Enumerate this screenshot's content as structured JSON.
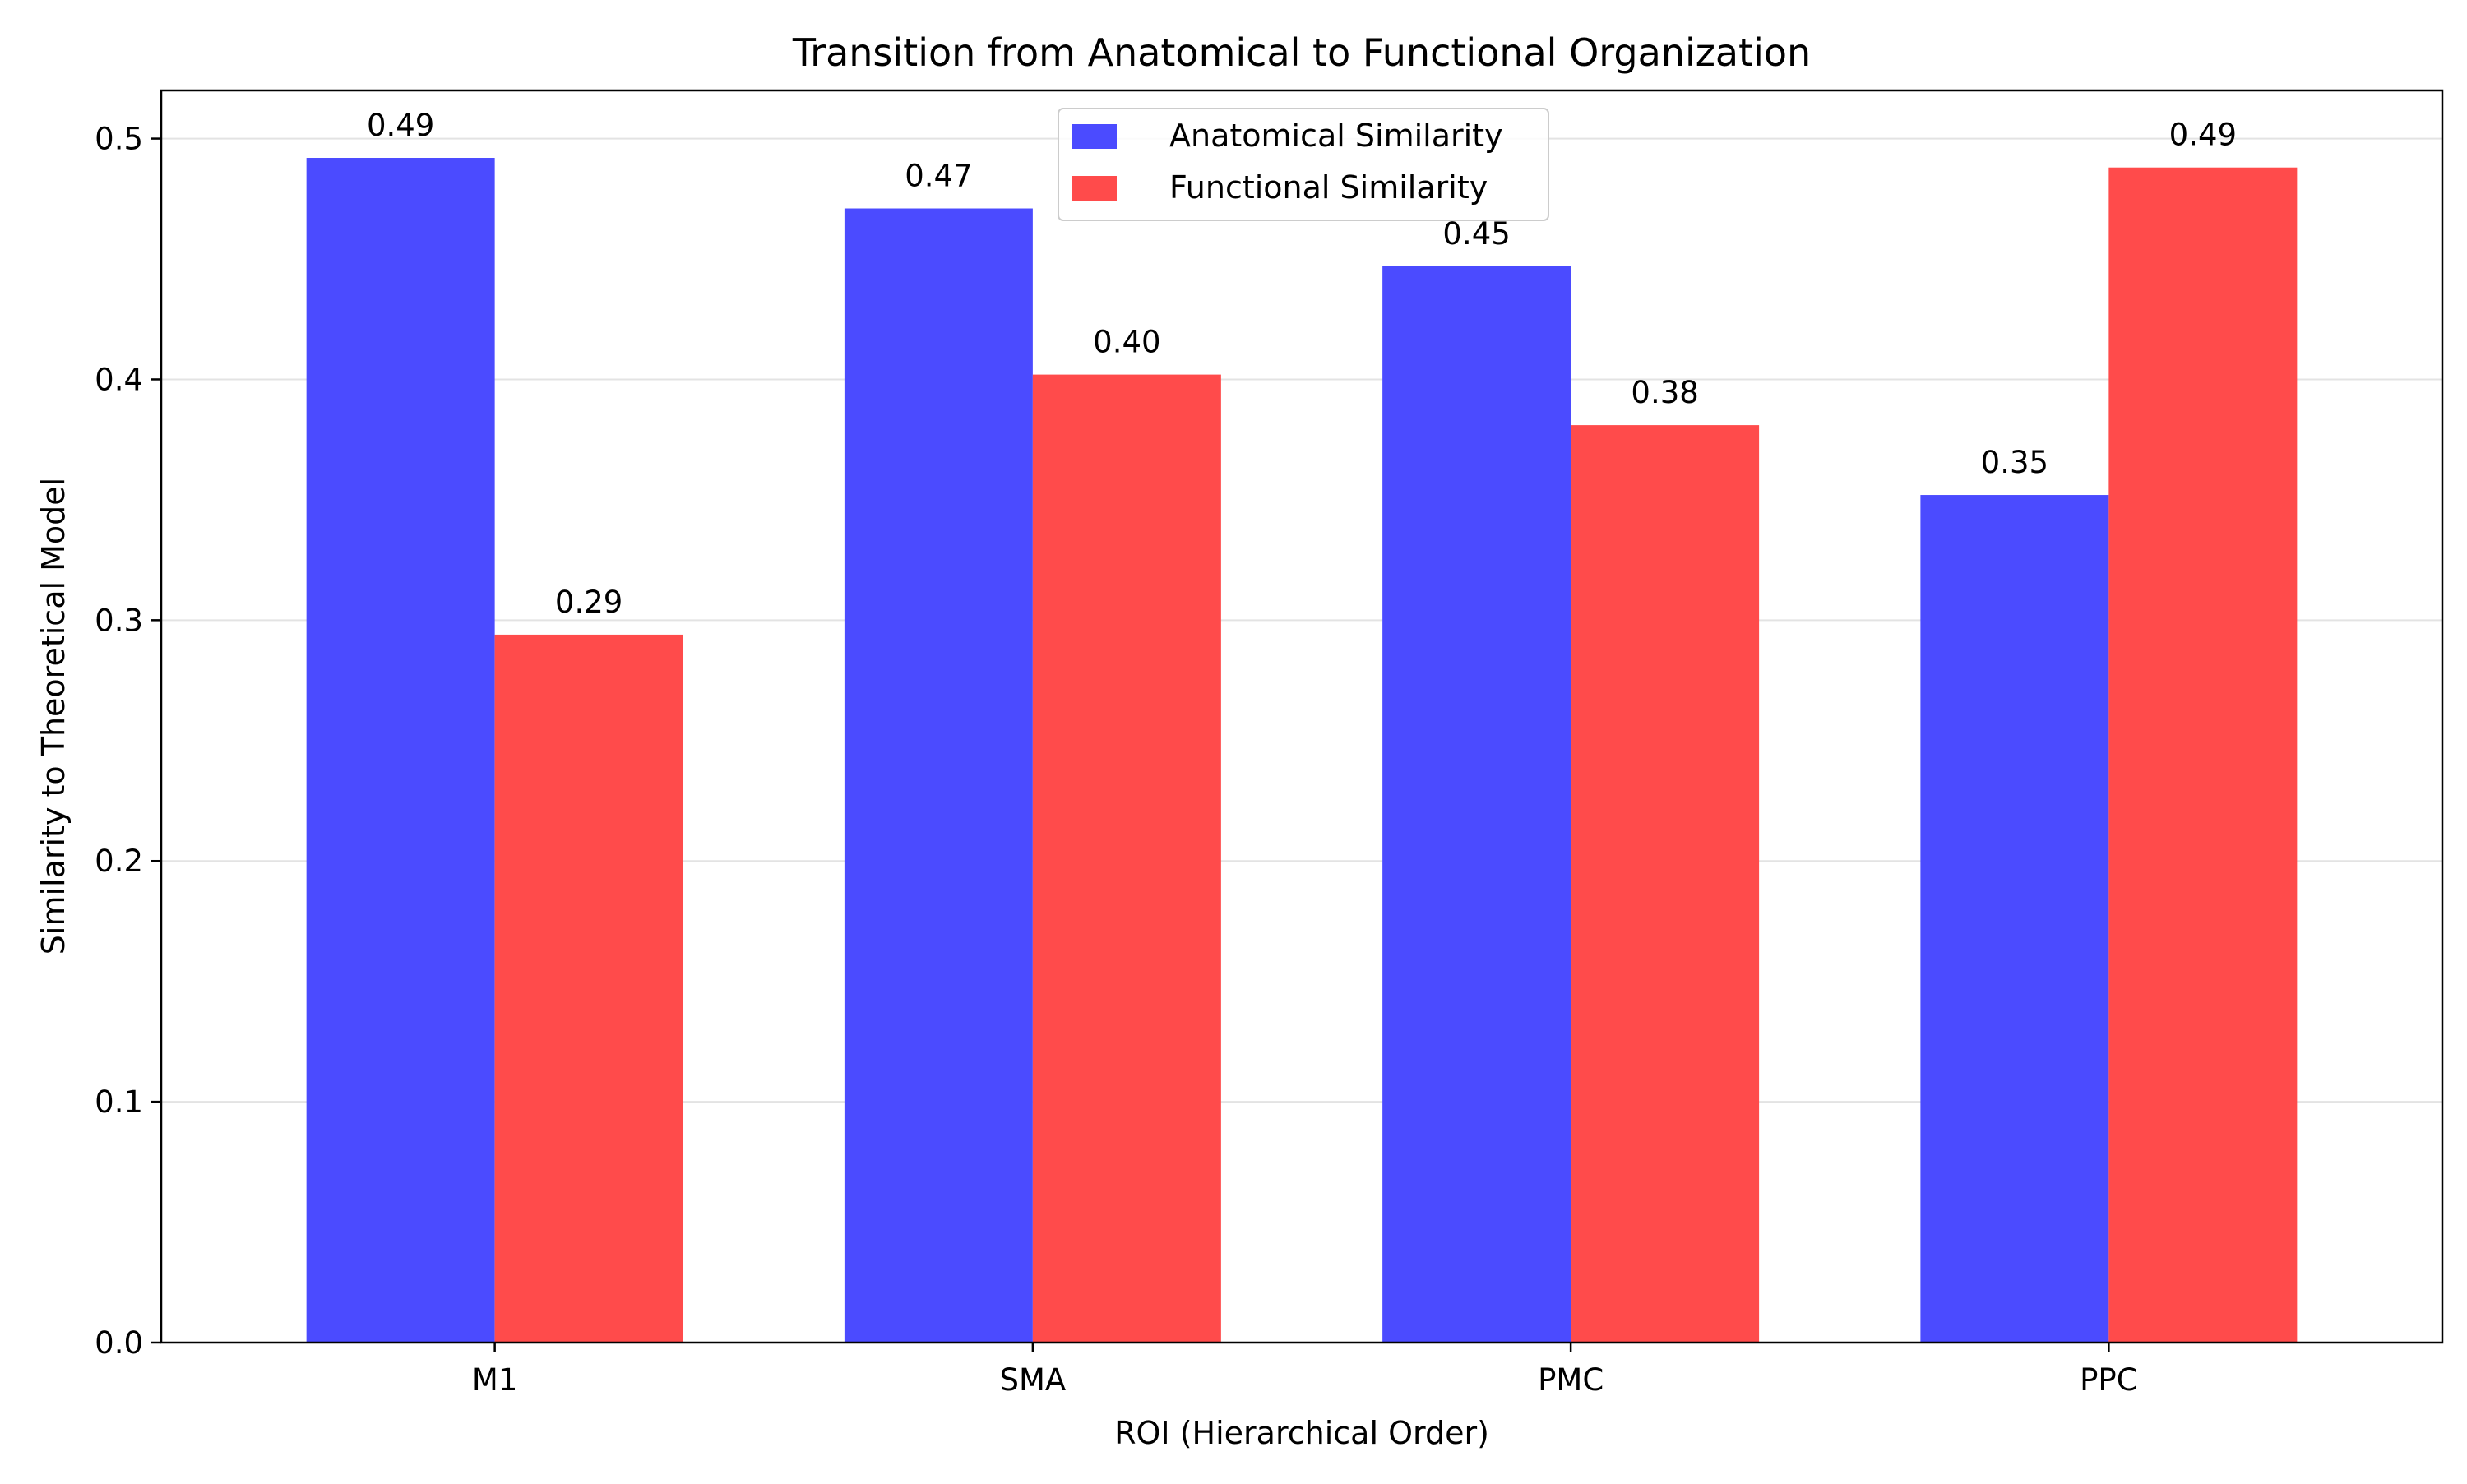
{
  "chart_data": {
    "type": "bar",
    "title": "Transition from Anatomical to Functional Organization",
    "xlabel": "ROI (Hierarchical Order)",
    "ylabel": "Similarity to Theoretical Model",
    "categories": [
      "M1",
      "SMA",
      "PMC",
      "PPC"
    ],
    "series": [
      {
        "name": "Anatomical Similarity",
        "color": "#4b4bff",
        "values": [
          0.492,
          0.471,
          0.447,
          0.352
        ],
        "labels": [
          "0.49",
          "0.47",
          "0.45",
          "0.35"
        ]
      },
      {
        "name": "Functional Similarity",
        "color": "#ff4b4b",
        "values": [
          0.294,
          0.402,
          0.381,
          0.488
        ],
        "labels": [
          "0.29",
          "0.40",
          "0.38",
          "0.49"
        ]
      }
    ],
    "ylim": [
      0,
      0.52
    ],
    "yticks": [
      "0.0",
      "0.1",
      "0.2",
      "0.3",
      "0.4",
      "0.5"
    ],
    "grid": "horizontal",
    "legend_position": "top-center"
  }
}
